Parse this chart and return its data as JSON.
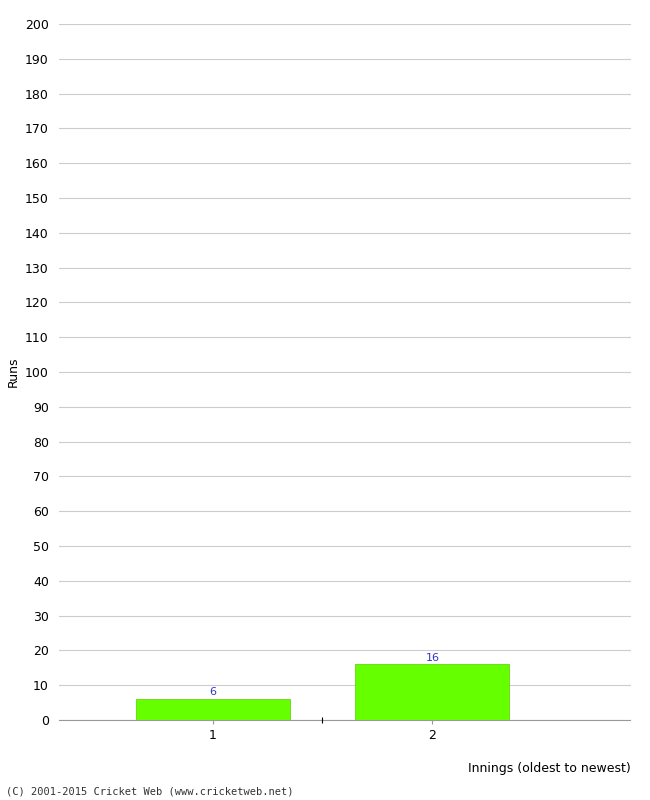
{
  "categories": [
    "1",
    "2"
  ],
  "values": [
    6,
    16
  ],
  "bar_color": "#66ff00",
  "bar_edge_color": "#55cc00",
  "ylabel": "Runs",
  "xlabel": "Innings (oldest to newest)",
  "ylim": [
    0,
    200
  ],
  "yticks": [
    0,
    10,
    20,
    30,
    40,
    50,
    60,
    70,
    80,
    90,
    100,
    110,
    120,
    130,
    140,
    150,
    160,
    170,
    180,
    190,
    200
  ],
  "label_color": "#3333cc",
  "footer": "(C) 2001-2015 Cricket Web (www.cricketweb.net)",
  "background_color": "#ffffff",
  "grid_color": "#cccccc"
}
